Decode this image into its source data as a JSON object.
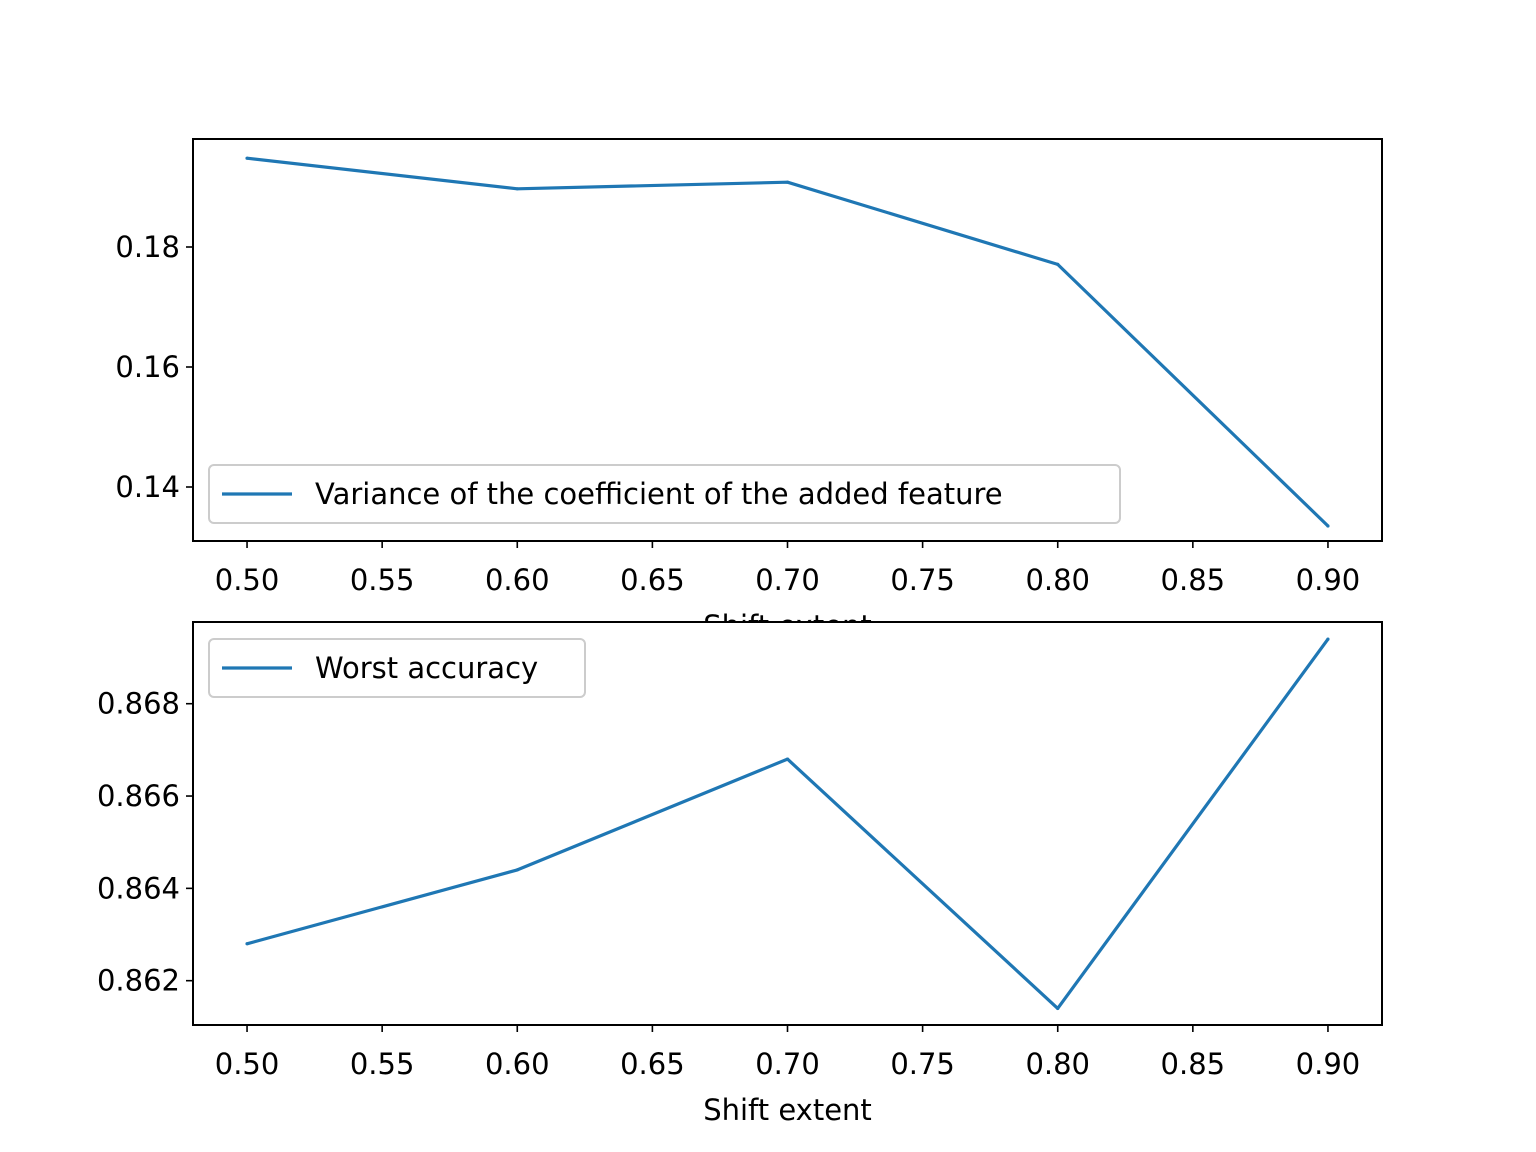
{
  "chart_data": [
    {
      "type": "line",
      "xlabel": "Shift extent",
      "ylabel": "",
      "title": "",
      "x": [
        0.5,
        0.6,
        0.7,
        0.8,
        0.9
      ],
      "xlim": [
        0.48,
        0.92
      ],
      "ylim": [
        0.131,
        0.198
      ],
      "xticks": [
        "0.50",
        "0.55",
        "0.60",
        "0.65",
        "0.70",
        "0.75",
        "0.80",
        "0.85",
        "0.90"
      ],
      "yticks": [
        "0.14",
        "0.16",
        "0.18"
      ],
      "series": [
        {
          "name": "Variance of the coefficient of the added feature",
          "values": [
            0.1948,
            0.1897,
            0.1908,
            0.1771,
            0.1335
          ],
          "color": "#1f77b4"
        }
      ],
      "legend_position": "lower-left",
      "grid": false
    },
    {
      "type": "line",
      "xlabel": "Shift extent",
      "ylabel": "",
      "title": "",
      "x": [
        0.5,
        0.6,
        0.7,
        0.8,
        0.9
      ],
      "xlim": [
        0.48,
        0.92
      ],
      "ylim": [
        0.86104,
        0.86977
      ],
      "xticks": [
        "0.50",
        "0.55",
        "0.60",
        "0.65",
        "0.70",
        "0.75",
        "0.80",
        "0.85",
        "0.90"
      ],
      "yticks": [
        "0.862",
        "0.864",
        "0.866",
        "0.868"
      ],
      "series": [
        {
          "name": "Worst accuracy",
          "values": [
            0.8628,
            0.8644,
            0.8668,
            0.8614,
            0.8694
          ],
          "color": "#1f77b4"
        }
      ],
      "legend_position": "upper-left",
      "grid": false
    }
  ]
}
